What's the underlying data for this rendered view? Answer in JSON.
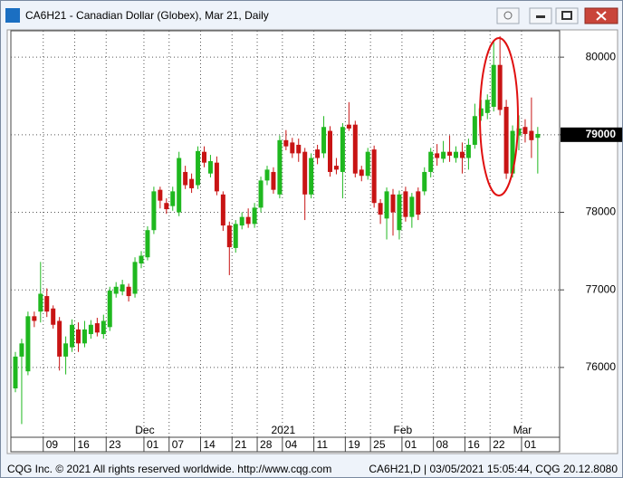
{
  "window_title": "CA6H21 - Canadian Dollar (Globex), Mar 21, Daily",
  "footer_left": "CQG Inc. © 2021 All rights reserved worldwide. http://www.cqg.com",
  "footer_right": "CA6H21,D | 03/05/2021 15:05:44, CQG 20.12.8080",
  "chart_data": {
    "type": "candlestick",
    "up_color": "#1fb81f",
    "down_color": "#c81414",
    "grid": true,
    "ylim": [
      75100,
      80340
    ],
    "yticks": [
      76000,
      77000,
      78000,
      79000,
      80000
    ],
    "last_price": 79000,
    "categories": [
      null,
      null,
      null,
      null,
      null,
      "09",
      null,
      null,
      null,
      null,
      "16",
      null,
      null,
      null,
      null,
      "23",
      null,
      null,
      null,
      null,
      null,
      "01",
      null,
      null,
      null,
      "07",
      null,
      null,
      null,
      null,
      "14",
      null,
      null,
      null,
      null,
      "21",
      null,
      null,
      null,
      "28",
      null,
      null,
      null,
      "04",
      null,
      null,
      null,
      null,
      "11",
      null,
      null,
      null,
      null,
      "19",
      null,
      null,
      null,
      "25",
      null,
      null,
      null,
      null,
      "01",
      null,
      null,
      null,
      null,
      "08",
      null,
      null,
      null,
      null,
      "16",
      null,
      null,
      null,
      "22",
      null,
      null,
      null,
      null,
      "01",
      null,
      null
    ],
    "months": [
      null,
      null,
      null,
      null,
      null,
      null,
      null,
      null,
      null,
      null,
      null,
      null,
      null,
      null,
      null,
      null,
      null,
      null,
      null,
      null,
      null,
      "Dec",
      null,
      null,
      null,
      null,
      null,
      null,
      null,
      null,
      null,
      null,
      null,
      null,
      null,
      null,
      null,
      null,
      null,
      null,
      null,
      null,
      null,
      "2021",
      null,
      null,
      null,
      null,
      null,
      null,
      null,
      null,
      null,
      null,
      null,
      null,
      null,
      null,
      null,
      null,
      null,
      null,
      "Feb",
      null,
      null,
      null,
      null,
      null,
      null,
      null,
      null,
      null,
      null,
      null,
      null,
      null,
      null,
      null,
      null,
      null,
      null,
      "Mar",
      null,
      null
    ],
    "open": [
      75730,
      76140,
      75950,
      76660,
      76720,
      76920,
      76760,
      76600,
      76140,
      76260,
      76490,
      76310,
      76430,
      76570,
      76430,
      76520,
      76950,
      76980,
      77040,
      76950,
      77340,
      77420,
      77770,
      78290,
      78120,
      78080,
      78000,
      78520,
      78430,
      78350,
      78780,
      78500,
      78640,
      78230,
      77830,
      77540,
      77830,
      77940,
      77850,
      78060,
      78410,
      78520,
      78230,
      78930,
      78900,
      78870,
      78780,
      78230,
      78810,
      78760,
      79050,
      78600,
      78520,
      79130,
      79130,
      78550,
      78470,
      78810,
      78120,
      77920,
      78230,
      77770,
      78270,
      77940,
      78270,
      78270,
      78520,
      78760,
      78690,
      78780,
      78700,
      78780,
      78700,
      78870,
      79240,
      79280,
      79360,
      79900,
      79360,
      78500,
      78990,
      79100,
      79050,
      78960
    ],
    "high": [
      76200,
      76370,
      76720,
      76720,
      77360,
      77020,
      76800,
      76650,
      76400,
      76620,
      76580,
      76600,
      76610,
      76640,
      76680,
      77040,
      77100,
      77130,
      77080,
      77420,
      77500,
      77820,
      78330,
      78330,
      78180,
      78330,
      78780,
      78600,
      78500,
      78850,
      78850,
      78740,
      78720,
      78270,
      77880,
      77900,
      78000,
      78050,
      78120,
      78460,
      78600,
      78580,
      78990,
      79060,
      78960,
      78950,
      78830,
      78760,
      78870,
      79240,
      79110,
      78700,
      79150,
      79420,
      79180,
      78600,
      78830,
      78860,
      78170,
      78320,
      78300,
      78280,
      78330,
      78250,
      78320,
      78580,
      78830,
      78880,
      78920,
      78990,
      78850,
      78900,
      78950,
      79400,
      79450,
      79520,
      80210,
      80270,
      79450,
      79120,
      79250,
      79200,
      79480,
      79100
    ],
    "low": [
      75680,
      75270,
      75900,
      76520,
      76580,
      76650,
      76500,
      75960,
      75910,
      76200,
      76200,
      76260,
      76370,
      76400,
      76370,
      76470,
      76900,
      76930,
      76850,
      76900,
      77280,
      77380,
      77720,
      78050,
      77980,
      78020,
      77950,
      78300,
      78250,
      78300,
      78580,
      78450,
      78220,
      77760,
      77190,
      77480,
      77780,
      77800,
      77800,
      78000,
      78350,
      78240,
      78180,
      78800,
      78700,
      78650,
      77900,
      78180,
      78620,
      78700,
      78460,
      78490,
      78180,
      79050,
      78450,
      78400,
      78420,
      78060,
      77850,
      77650,
      77700,
      77650,
      77880,
      77800,
      77900,
      78220,
      78450,
      78600,
      78640,
      78650,
      78640,
      78500,
      78550,
      78820,
      79180,
      79200,
      79300,
      79250,
      78430,
      78450,
      78800,
      78900,
      78700,
      78500
    ],
    "close": [
      76140,
      76310,
      76660,
      76600,
      76950,
      76720,
      76550,
      76140,
      76310,
      76550,
      76310,
      76490,
      76550,
      76450,
      76600,
      76990,
      77040,
      77070,
      76920,
      77360,
      77440,
      77770,
      78270,
      78150,
      78040,
      78270,
      78700,
      78350,
      78310,
      78790,
      78640,
      78660,
      78270,
      77830,
      77550,
      77850,
      77940,
      77850,
      78060,
      78410,
      78550,
      78290,
      78930,
      78850,
      78760,
      78760,
      78230,
      78700,
      78700,
      79100,
      78520,
      78550,
      79100,
      79080,
      78500,
      78470,
      78780,
      78120,
      77970,
      78270,
      78000,
      78230,
      77940,
      78200,
      77970,
      78520,
      78780,
      78700,
      78780,
      78730,
      78780,
      78700,
      78870,
      79240,
      79340,
      79450,
      79900,
      79320,
      78500,
      79050,
      79080,
      79010,
      78930,
      79010
    ]
  }
}
